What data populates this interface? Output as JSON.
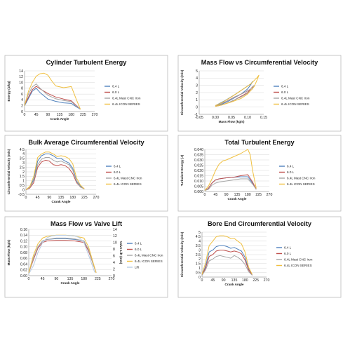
{
  "colors": {
    "s64": "#4f81bd",
    "s60": "#c0504d",
    "mast": "#a5a5a5",
    "icon": "#f0c040",
    "lift": "#b8cce4"
  },
  "chart_data": [
    {
      "type": "line",
      "title": "Cylinder Turbulent Energy",
      "xlabel": "Crank Angle",
      "ylabel": "Energy (J/kg)",
      "xlim": [
        0,
        270
      ],
      "ylim": [
        0,
        14
      ],
      "xticks": [
        0,
        45,
        90,
        135,
        180,
        225,
        270
      ],
      "yticks": [
        0,
        2,
        4,
        6,
        8,
        10,
        12,
        14
      ],
      "series": [
        {
          "name": "6.4 L",
          "color": "s64",
          "x": [
            0,
            15,
            30,
            45,
            60,
            90,
            120,
            150,
            180,
            200,
            215
          ],
          "y": [
            2,
            4.5,
            7,
            8,
            6.5,
            4.3,
            3.5,
            3,
            2.8,
            1.6,
            0.8
          ]
        },
        {
          "name": "6.0 L",
          "color": "s60",
          "x": [
            0,
            15,
            30,
            45,
            60,
            90,
            120,
            150,
            180,
            200,
            215
          ],
          "y": [
            2.3,
            5,
            7.5,
            8.7,
            7.8,
            6.2,
            5,
            4.3,
            3.7,
            2,
            0.8
          ]
        },
        {
          "name": "6.4L Mast CNC Iron",
          "color": "mast",
          "x": [
            0,
            15,
            30,
            45,
            60,
            90,
            120,
            150,
            180,
            200,
            215
          ],
          "y": [
            2.5,
            6,
            8.5,
            9.5,
            8,
            5.6,
            4.4,
            3.8,
            3.4,
            1.8,
            0.8
          ]
        },
        {
          "name": "6.4L ICON SERIES",
          "color": "icon",
          "x": [
            0,
            15,
            30,
            45,
            60,
            75,
            90,
            105,
            120,
            150,
            180,
            200,
            215
          ],
          "y": [
            2,
            7,
            10,
            12.2,
            13,
            13.2,
            12.5,
            10.5,
            8.8,
            8.2,
            8.6,
            4,
            0.8
          ]
        }
      ]
    },
    {
      "type": "line",
      "title": "Mass Flow vs Circumferential Velocity",
      "xlabel": "Mass Flow (kg/s)",
      "ylabel": "Circumferential Velocity (m/s)",
      "xlim": [
        -0.05,
        0.15
      ],
      "ylim": [
        -1,
        5
      ],
      "xticks": [
        -0.05,
        0,
        0.05,
        0.1,
        0.15
      ],
      "yticks": [
        -1,
        0,
        1,
        2,
        3,
        4,
        5
      ],
      "xticklabels": [
        "-0.05",
        "0.00",
        "0.05",
        "0.10",
        "0.15"
      ],
      "series": [
        {
          "name": "6.4 L",
          "color": "s64",
          "x": [
            0,
            0.02,
            0.04,
            0.06,
            0.08,
            0.1,
            0.11,
            0.115,
            0.11,
            0.09,
            0.06,
            0.03,
            0
          ],
          "y": [
            0.1,
            0.4,
            0.8,
            1.3,
            1.8,
            2.5,
            3.1,
            3.5,
            3.2,
            2.6,
            1.7,
            0.9,
            0.2
          ]
        },
        {
          "name": "6.0 L",
          "color": "s60",
          "x": [
            0,
            0.02,
            0.04,
            0.06,
            0.08,
            0.1,
            0.11,
            0.115,
            0.11,
            0.09,
            0.06,
            0.03,
            0
          ],
          "y": [
            0.1,
            0.3,
            0.6,
            1,
            1.5,
            2,
            2.5,
            2.8,
            2.5,
            2,
            1.4,
            0.7,
            0.2
          ]
        },
        {
          "name": "6.4L Mast CNC Iron",
          "color": "mast",
          "x": [
            0,
            0.02,
            0.04,
            0.06,
            0.08,
            0.1,
            0.115,
            0.12,
            0.115,
            0.1,
            0.07,
            0.04,
            0
          ],
          "y": [
            0.1,
            0.3,
            0.6,
            1,
            1.4,
            1.9,
            2.5,
            3,
            2.7,
            2.2,
            1.6,
            0.9,
            0.2
          ]
        },
        {
          "name": "6.4L  ICON SERIES",
          "color": "icon",
          "x": [
            0,
            0.02,
            0.05,
            0.08,
            0.1,
            0.12,
            0.13,
            0.135,
            0.13,
            0.11,
            0.08,
            0.05,
            0.02,
            0
          ],
          "y": [
            0.1,
            0.3,
            0.7,
            1.2,
            1.8,
            2.8,
            3.8,
            4.4,
            4.1,
            3.2,
            2.3,
            1.4,
            0.6,
            0.2
          ]
        }
      ]
    },
    {
      "type": "line",
      "title": "Bulk Average Circumferential Velocity",
      "xlabel": "Crank Angle",
      "ylabel": "Circumferential Velocity (m/s)",
      "xlim": [
        0,
        270
      ],
      "ylim": [
        -0.5,
        4.5
      ],
      "xticks": [
        0,
        45,
        90,
        135,
        180,
        225,
        270
      ],
      "yticks": [
        -0.5,
        0,
        0.5,
        1,
        1.5,
        2,
        2.5,
        3,
        3.5,
        4,
        4.5
      ],
      "xticklabels": [
        "0",
        "45",
        "90",
        "135",
        "180",
        "225",
        "270"
      ],
      "series": [
        {
          "name": "6.4 L",
          "color": "s64",
          "x": [
            0,
            15,
            30,
            45,
            60,
            75,
            90,
            105,
            120,
            135,
            150,
            165,
            180,
            195,
            210,
            225
          ],
          "y": [
            0,
            0.3,
            1.2,
            3.2,
            3.8,
            4,
            4,
            3.8,
            3.5,
            3.5,
            3.2,
            3,
            2.4,
            1,
            0.4,
            0.1
          ]
        },
        {
          "name": "6.0 L",
          "color": "s60",
          "x": [
            0,
            15,
            30,
            45,
            60,
            75,
            90,
            105,
            120,
            135,
            150,
            165,
            180,
            195,
            210,
            225
          ],
          "y": [
            0,
            0.2,
            0.8,
            2.5,
            3.1,
            3.3,
            3.2,
            2.8,
            2.7,
            2.8,
            2.7,
            2.4,
            1.8,
            0.8,
            0.3,
            0.1
          ]
        },
        {
          "name": "6.4L Mast CNC Iron",
          "color": "mast",
          "x": [
            0,
            15,
            30,
            45,
            60,
            75,
            90,
            105,
            120,
            135,
            150,
            165,
            180,
            195,
            210,
            225
          ],
          "y": [
            0,
            0.3,
            1,
            2.8,
            3.4,
            3.6,
            3.6,
            3.3,
            3.1,
            3.2,
            3,
            2.8,
            2.2,
            0.9,
            0.3,
            0.1
          ]
        },
        {
          "name": "6.4L  ICON SERIES",
          "color": "icon",
          "x": [
            0,
            15,
            30,
            45,
            60,
            75,
            90,
            105,
            120,
            135,
            150,
            165,
            180,
            195,
            210,
            225
          ],
          "y": [
            0,
            0.4,
            1.5,
            3.6,
            4,
            4.2,
            4.2,
            4,
            3.7,
            3.8,
            3.7,
            3.5,
            2.9,
            1.3,
            0.5,
            0.1
          ]
        }
      ]
    },
    {
      "type": "line",
      "title": "Total Turbulent Energy",
      "xlabel": "Crank Angle",
      "ylabel": "Turbulent Energy (J)",
      "xlim": [
        0,
        270
      ],
      "ylim": [
        0,
        0.04
      ],
      "xticks": [
        0,
        45,
        90,
        135,
        180,
        225,
        270
      ],
      "yticks": [
        0,
        0.005,
        0.01,
        0.015,
        0.02,
        0.025,
        0.03,
        0.035,
        0.04
      ],
      "yticklabels": [
        "0.000",
        "0.005",
        "0.010",
        "0.015",
        "0.020",
        "0.025",
        "0.030",
        "0.035",
        "0.040"
      ],
      "series": [
        {
          "name": "6.4 L",
          "color": "s64",
          "x": [
            0,
            15,
            30,
            45,
            60,
            90,
            120,
            150,
            180,
            200,
            215
          ],
          "y": [
            0.001,
            0.003,
            0.008,
            0.011,
            0.012,
            0.013,
            0.0135,
            0.014,
            0.014,
            0.008,
            0.002
          ]
        },
        {
          "name": "6.0 L",
          "color": "s60",
          "x": [
            0,
            15,
            30,
            45,
            60,
            90,
            120,
            150,
            180,
            200,
            215
          ],
          "y": [
            0.001,
            0.003,
            0.008,
            0.011,
            0.012,
            0.013,
            0.0135,
            0.015,
            0.016,
            0.009,
            0.002
          ]
        },
        {
          "name": "6.4L Mast CNC Iron",
          "color": "mast",
          "x": [
            0,
            15,
            30,
            45,
            60,
            90,
            120,
            150,
            180,
            200,
            215
          ],
          "y": [
            0.001,
            0.002,
            0.006,
            0.008,
            0.009,
            0.01,
            0.011,
            0.012,
            0.012,
            0.007,
            0.002
          ]
        },
        {
          "name": "6.4L  ICON SERIES",
          "color": "icon",
          "x": [
            0,
            15,
            30,
            45,
            60,
            75,
            90,
            120,
            150,
            180,
            190,
            200,
            215
          ],
          "y": [
            0.001,
            0.005,
            0.012,
            0.02,
            0.026,
            0.029,
            0.03,
            0.033,
            0.036,
            0.04,
            0.035,
            0.02,
            0.003
          ]
        }
      ]
    },
    {
      "type": "line",
      "title": "Mass Flow vs Valve Lift",
      "xlabel": "Crank Angle",
      "ylabel": "Mass Flow (kg/s)",
      "y2label": "Valve Lift (mm)",
      "xlim": [
        0,
        270
      ],
      "ylim": [
        0,
        0.16
      ],
      "y2lim": [
        0,
        14
      ],
      "xticks": [
        0,
        45,
        90,
        135,
        180,
        225,
        270
      ],
      "yticks": [
        0,
        0.02,
        0.04,
        0.06,
        0.08,
        0.1,
        0.12,
        0.14,
        0.16
      ],
      "yticklabels": [
        "0.00",
        "0.02",
        "0.04",
        "0.06",
        "0.08",
        "0.10",
        "0.12",
        "0.14",
        "0.16"
      ],
      "y2ticks": [
        0,
        2,
        4,
        6,
        8,
        10,
        12,
        14
      ],
      "series": [
        {
          "name": "6.4 L",
          "color": "s64",
          "x": [
            0,
            15,
            30,
            45,
            60,
            90,
            120,
            150,
            180,
            195,
            210,
            220
          ],
          "y": [
            0.01,
            0.06,
            0.1,
            0.12,
            0.125,
            0.128,
            0.128,
            0.125,
            0.12,
            0.09,
            0.04,
            0.01
          ]
        },
        {
          "name": "6.0 L",
          "color": "s60",
          "x": [
            0,
            15,
            30,
            45,
            60,
            90,
            120,
            150,
            180,
            195,
            210,
            220
          ],
          "y": [
            0.01,
            0.055,
            0.095,
            0.115,
            0.12,
            0.122,
            0.122,
            0.12,
            0.115,
            0.085,
            0.04,
            0.01
          ]
        },
        {
          "name": "6.4L Mast CNC Iron",
          "color": "mast",
          "x": [
            0,
            15,
            30,
            45,
            60,
            90,
            120,
            150,
            180,
            195,
            210,
            220
          ],
          "y": [
            0.01,
            0.06,
            0.1,
            0.12,
            0.125,
            0.13,
            0.13,
            0.127,
            0.12,
            0.09,
            0.04,
            0.01
          ]
        },
        {
          "name": "6.4L  ICON SERIES",
          "color": "icon",
          "x": [
            0,
            15,
            30,
            45,
            60,
            90,
            120,
            150,
            180,
            195,
            210,
            220
          ],
          "y": [
            0.01,
            0.07,
            0.11,
            0.13,
            0.136,
            0.14,
            0.14,
            0.137,
            0.13,
            0.1,
            0.045,
            0.01
          ]
        },
        {
          "name": "Lift",
          "color": "lift",
          "axis": "y2",
          "x": [
            0,
            15,
            30,
            45,
            60,
            75,
            90,
            120,
            150,
            165,
            180,
            200,
            215
          ],
          "y": [
            0.5,
            3,
            7,
            10,
            11.5,
            12,
            12.2,
            12.2,
            12,
            11.5,
            10,
            5,
            1
          ]
        }
      ]
    },
    {
      "type": "line",
      "title": "Bore End Circumferential Velocity",
      "xlabel": "Crank Angle",
      "ylabel": "Circumferential Velocity (m/s)",
      "xlim": [
        0,
        270
      ],
      "ylim": [
        0,
        5
      ],
      "xticks": [
        0,
        45,
        90,
        135,
        180,
        225,
        270
      ],
      "yticks": [
        0,
        0.5,
        1,
        1.5,
        2,
        2.5,
        3,
        3.5,
        4,
        4.5,
        5
      ],
      "yticklabels": [
        "0",
        "0.5",
        "1",
        "1.5",
        "2",
        "2.5",
        "3",
        "3.5",
        "4",
        "4.5",
        "5"
      ],
      "series": [
        {
          "name": "6.4 L",
          "color": "s64",
          "x": [
            0,
            15,
            30,
            45,
            60,
            75,
            90,
            105,
            120,
            135,
            150,
            165,
            180,
            195,
            210
          ],
          "y": [
            0.2,
            1.2,
            2.8,
            3,
            3.4,
            3.5,
            3.5,
            3.4,
            3.2,
            3.3,
            3.1,
            2.9,
            2.2,
            0.9,
            0.2
          ]
        },
        {
          "name": "6.0 L",
          "color": "s60",
          "x": [
            0,
            15,
            30,
            45,
            60,
            75,
            90,
            105,
            120,
            135,
            150,
            165,
            180,
            195,
            210
          ],
          "y": [
            0.2,
            1,
            2.3,
            2.5,
            2.9,
            3,
            3,
            2.9,
            2.8,
            2.9,
            2.8,
            2.6,
            1.9,
            0.8,
            0.2
          ]
        },
        {
          "name": "6.4L Mast CNC Iron",
          "color": "mast",
          "x": [
            0,
            15,
            30,
            45,
            60,
            75,
            90,
            105,
            120,
            135,
            150,
            165,
            180,
            195,
            210
          ],
          "y": [
            0.2,
            0.8,
            1.8,
            2,
            2.3,
            2.4,
            2.3,
            2.2,
            2.1,
            2.4,
            2.2,
            1.9,
            1.4,
            0.6,
            0.2
          ]
        },
        {
          "name": "6.4L  ICON SERIES",
          "color": "icon",
          "x": [
            0,
            15,
            30,
            45,
            60,
            75,
            90,
            105,
            120,
            135,
            150,
            165,
            180,
            195,
            210
          ],
          "y": [
            0.3,
            1.6,
            3.5,
            4,
            4.5,
            4.6,
            4.6,
            4.5,
            4.3,
            4.3,
            4,
            3.7,
            2.8,
            1.1,
            0.3
          ]
        }
      ]
    }
  ]
}
